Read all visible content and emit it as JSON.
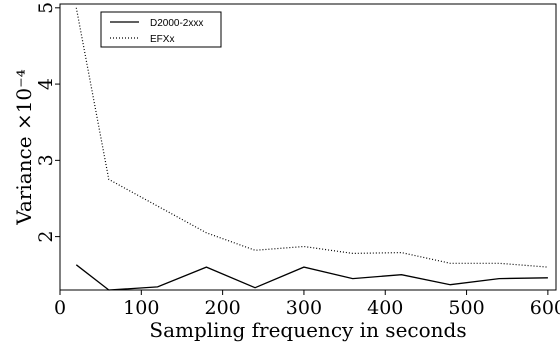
{
  "chart_data": {
    "type": "line",
    "title": "",
    "xlabel": "Sampling frequency in seconds",
    "ylabel": "Variance ×10⁻⁴",
    "xlim": [
      0,
      610
    ],
    "ylim": [
      1.3,
      5.05
    ],
    "xticks": [
      0,
      100,
      200,
      300,
      400,
      500,
      600
    ],
    "yticks": [
      2,
      3,
      4,
      5
    ],
    "grid": false,
    "legend_position": "top-left",
    "series": [
      {
        "name": "D2000-2xxx",
        "line_style": "solid",
        "color": "#000000",
        "x": [
          20,
          60,
          120,
          180,
          240,
          300,
          360,
          420,
          480,
          540,
          600
        ],
        "y": [
          1.63,
          1.3,
          1.34,
          1.6,
          1.33,
          1.6,
          1.45,
          1.5,
          1.37,
          1.45,
          1.46
        ]
      },
      {
        "name": "EFXx",
        "line_style": "dotted",
        "color": "#000000",
        "x": [
          20,
          60,
          120,
          180,
          240,
          300,
          360,
          420,
          480,
          540,
          600
        ],
        "y": [
          5.0,
          2.75,
          2.4,
          2.05,
          1.82,
          1.87,
          1.78,
          1.79,
          1.65,
          1.65,
          1.6
        ]
      }
    ]
  }
}
